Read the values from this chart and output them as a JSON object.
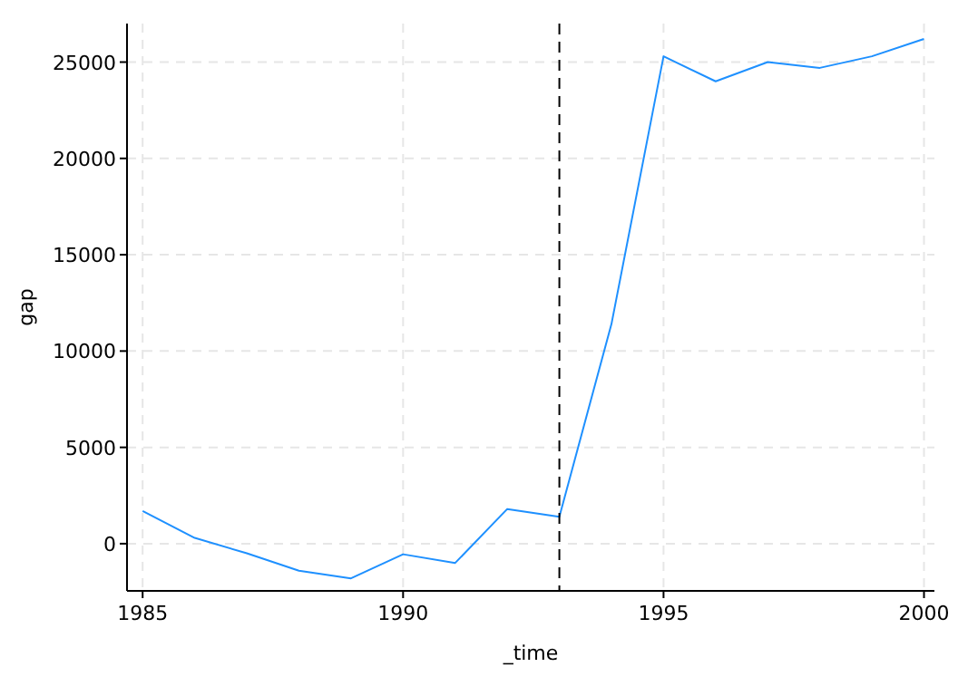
{
  "chart_data": {
    "type": "line",
    "xlabel": "_time",
    "ylabel": "gap",
    "x": [
      1985,
      1986,
      1987,
      1988,
      1989,
      1990,
      1991,
      1992,
      1993,
      1994,
      1995,
      1996,
      1997,
      1998,
      1999,
      2000
    ],
    "series": [
      {
        "color": "#1e90ff",
        "values": [
          1700,
          300,
          -500,
          -1400,
          -1800,
          -550,
          -1000,
          1800,
          1400,
          11400,
          25300,
          24000,
          25000,
          24700,
          25300,
          26200
        ]
      }
    ],
    "xlim": [
      1984.7,
      2000.2
    ],
    "xticks": [
      1985,
      1990,
      1995,
      2000
    ],
    "ylim": [
      -2450,
      27000
    ],
    "yticks": [
      0,
      5000,
      10000,
      15000,
      20000,
      25000
    ],
    "grid": true,
    "line_style": "solid",
    "ref_lines": [
      {
        "axis": "x",
        "value": 1993,
        "color": "#000000",
        "line_style": "dashed"
      }
    ]
  }
}
